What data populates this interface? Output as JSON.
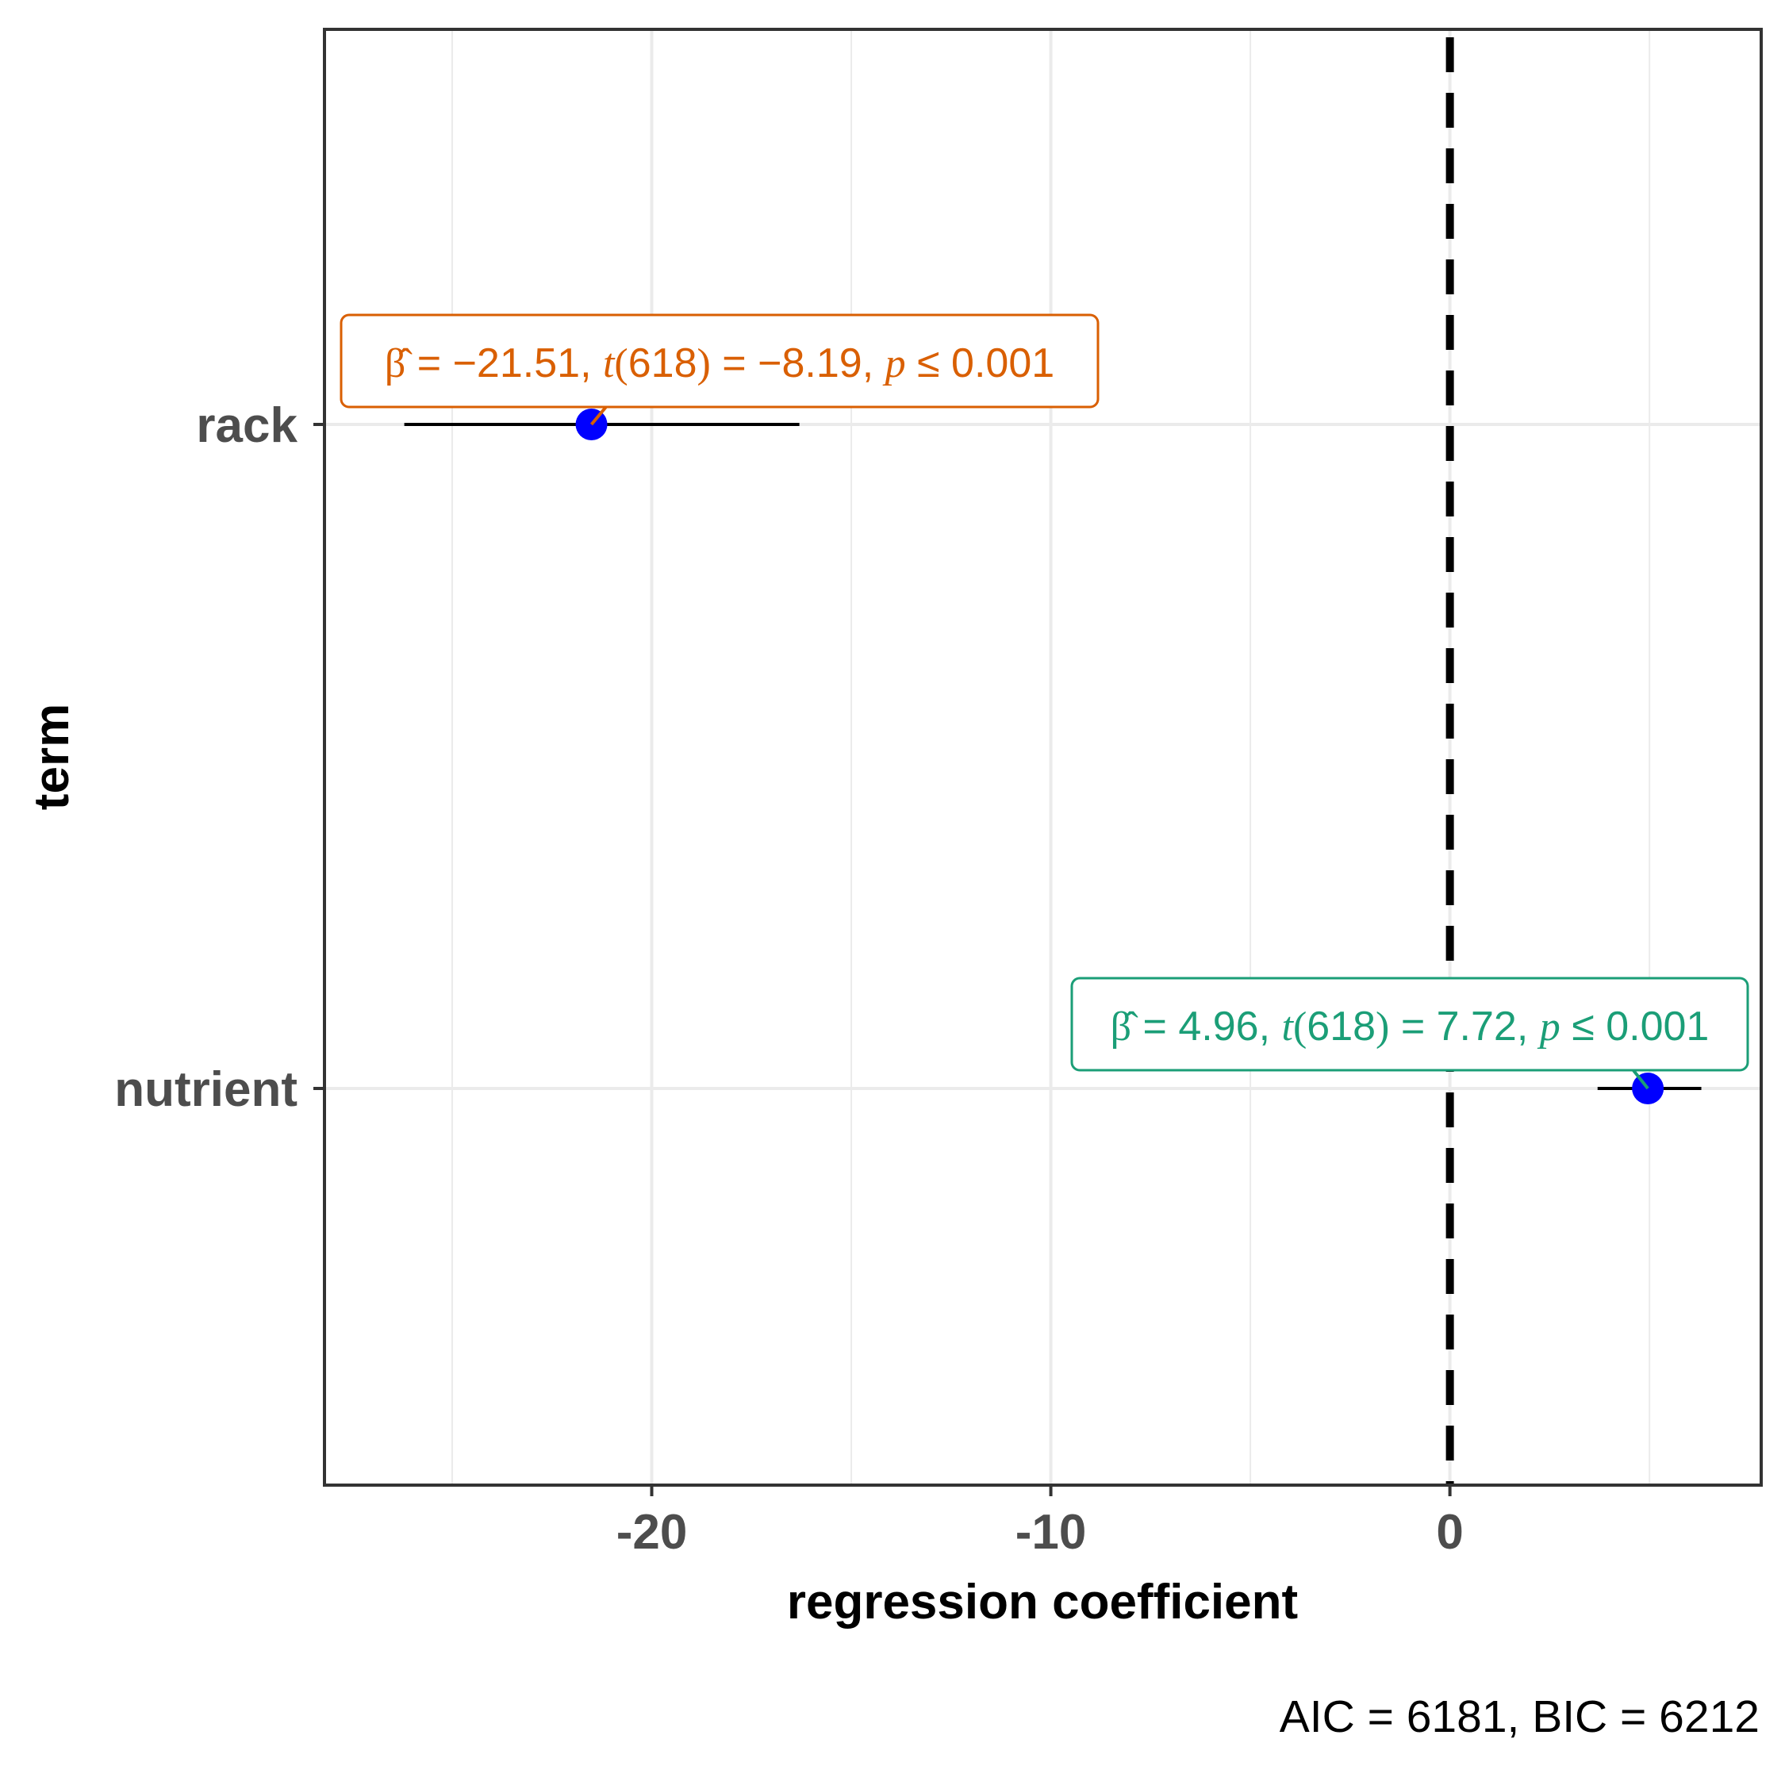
{
  "chart_data": {
    "type": "scatter",
    "subtype": "coefficient-plot",
    "title": "",
    "xlabel": "regression coefficient",
    "ylabel": "term",
    "xlim": [
      -28.2,
      7.8
    ],
    "x_ticks": [
      -20,
      -10,
      0
    ],
    "x_tick_labels": [
      "-20",
      "-10",
      "0"
    ],
    "categories": [
      "rack",
      "nutrient"
    ],
    "reference_line": {
      "x": 0,
      "style": "dashed",
      "color": "#000000"
    },
    "grid": true,
    "point_color": "#0000ff",
    "terms": [
      {
        "term": "rack",
        "estimate": -21.51,
        "conf_low": -26.2,
        "conf_high": -16.3,
        "color": "#d95f02",
        "label": {
          "beta": "−21.51",
          "df": "618",
          "t": "−8.19",
          "p": "0.001"
        }
      },
      {
        "term": "nutrient",
        "estimate": 4.96,
        "conf_low": 3.7,
        "conf_high": 6.3,
        "color": "#1b9e77",
        "label": {
          "beta": "4.96",
          "df": "618",
          "t": "7.72",
          "p": "0.001"
        }
      }
    ],
    "caption": "AIC = 6181, BIC = 6212"
  }
}
